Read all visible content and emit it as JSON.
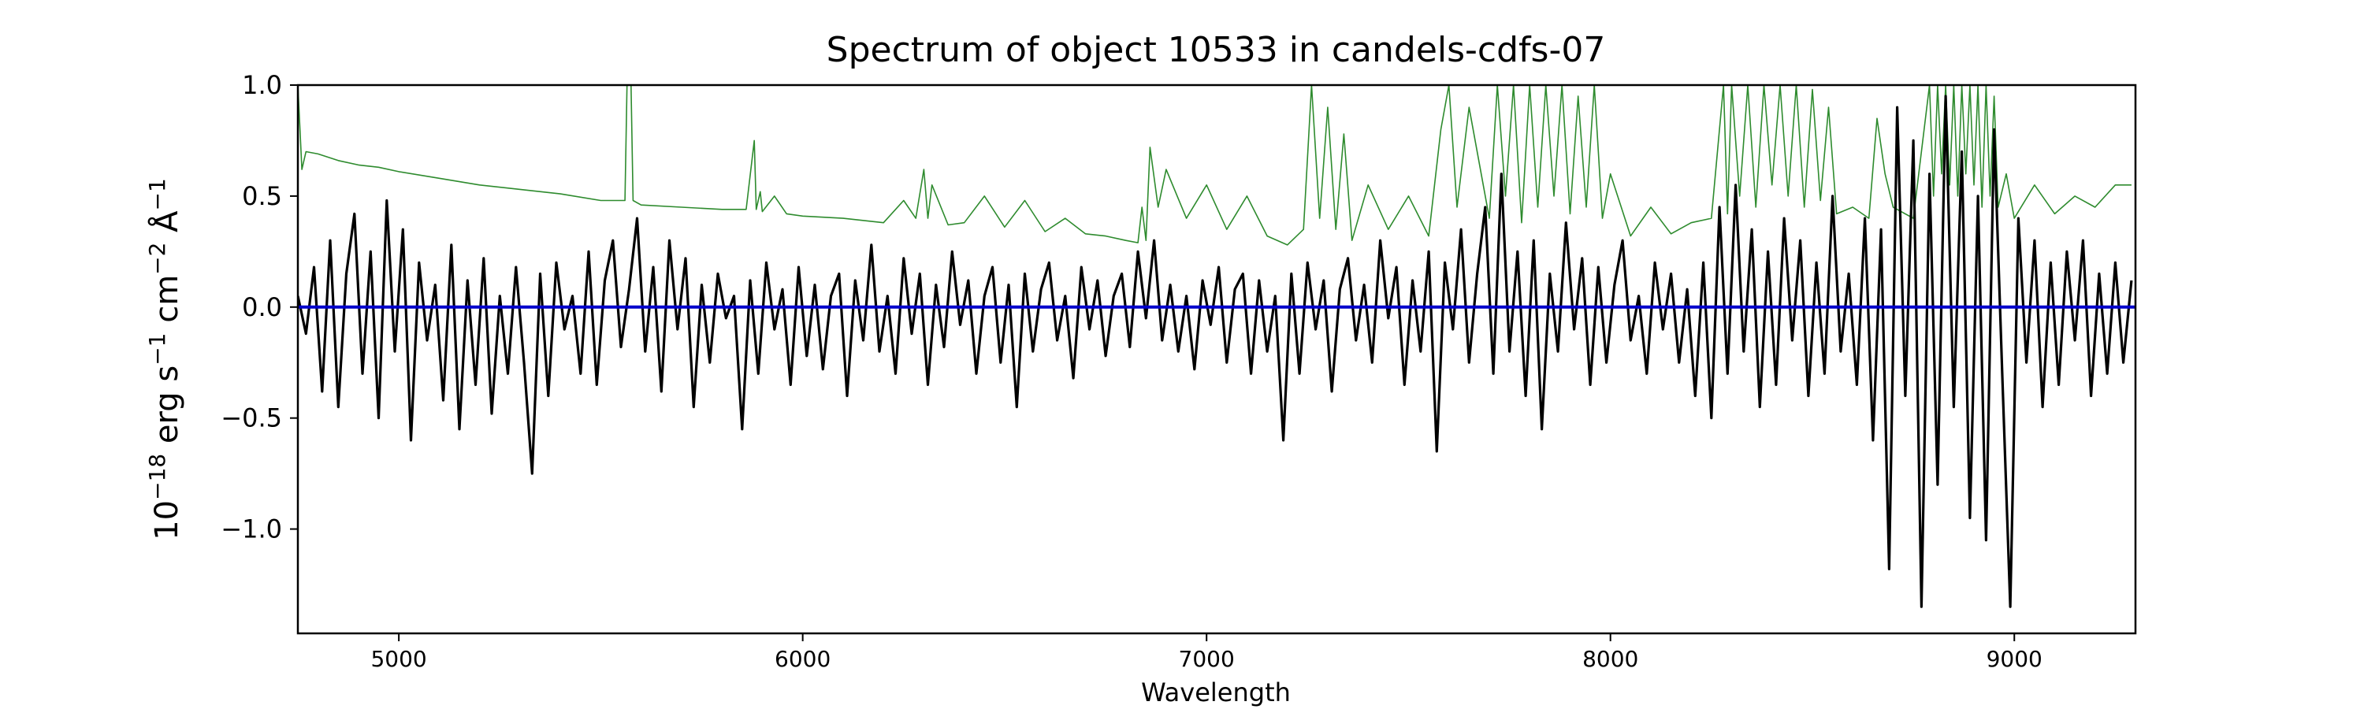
{
  "chart_data": {
    "type": "line",
    "title": "Spectrum of object 10533 in candels-cdfs-07",
    "xlabel": "Wavelength",
    "ylabel": "10^-18 erg s^-1 cm^-2 Å^-1",
    "xlim": [
      4750,
      9300
    ],
    "ylim": [
      -1.47,
      1.0
    ],
    "xticks": [
      5000,
      6000,
      7000,
      8000,
      9000
    ],
    "yticks": [
      -1.0,
      -0.5,
      0.0,
      0.5,
      1.0
    ],
    "ytick_labels": [
      "−1.0",
      "−0.5",
      "0.0",
      "0.5",
      "1.0"
    ],
    "grid": false,
    "colors": {
      "flux": "#000000",
      "sky": "#2e8b2e",
      "zero": "#0000cc"
    },
    "series": [
      {
        "role": "flux",
        "style": "noisy spectrum around zero, larger excursions at red end",
        "x": [
          4750,
          4770,
          4790,
          4810,
          4830,
          4850,
          4870,
          4890,
          4910,
          4930,
          4950,
          4970,
          4990,
          5010,
          5030,
          5050,
          5070,
          5090,
          5110,
          5130,
          5150,
          5170,
          5190,
          5210,
          5230,
          5250,
          5270,
          5290,
          5310,
          5330,
          5350,
          5370,
          5390,
          5410,
          5430,
          5450,
          5470,
          5490,
          5510,
          5530,
          5550,
          5570,
          5590,
          5610,
          5630,
          5650,
          5670,
          5690,
          5710,
          5730,
          5750,
          5770,
          5790,
          5810,
          5830,
          5850,
          5870,
          5890,
          5910,
          5930,
          5950,
          5970,
          5990,
          6010,
          6030,
          6050,
          6070,
          6090,
          6110,
          6130,
          6150,
          6170,
          6190,
          6210,
          6230,
          6250,
          6270,
          6290,
          6310,
          6330,
          6350,
          6370,
          6390,
          6410,
          6430,
          6450,
          6470,
          6490,
          6510,
          6530,
          6550,
          6570,
          6590,
          6610,
          6630,
          6650,
          6670,
          6690,
          6710,
          6730,
          6750,
          6770,
          6790,
          6810,
          6830,
          6850,
          6870,
          6890,
          6910,
          6930,
          6950,
          6970,
          6990,
          7010,
          7030,
          7050,
          7070,
          7090,
          7110,
          7130,
          7150,
          7170,
          7190,
          7210,
          7230,
          7250,
          7270,
          7290,
          7310,
          7330,
          7350,
          7370,
          7390,
          7410,
          7430,
          7450,
          7470,
          7490,
          7510,
          7530,
          7550,
          7570,
          7590,
          7610,
          7630,
          7650,
          7670,
          7690,
          7710,
          7730,
          7750,
          7770,
          7790,
          7810,
          7830,
          7850,
          7870,
          7890,
          7910,
          7930,
          7950,
          7970,
          7990,
          8010,
          8030,
          8050,
          8070,
          8090,
          8110,
          8130,
          8150,
          8170,
          8190,
          8210,
          8230,
          8250,
          8270,
          8290,
          8310,
          8330,
          8350,
          8370,
          8390,
          8410,
          8430,
          8450,
          8470,
          8490,
          8510,
          8530,
          8550,
          8570,
          8590,
          8610,
          8630,
          8650,
          8670,
          8690,
          8710,
          8730,
          8750,
          8770,
          8790,
          8810,
          8830,
          8850,
          8870,
          8890,
          8910,
          8930,
          8950,
          8970,
          8990,
          9010,
          9030,
          9050,
          9070,
          9090,
          9110,
          9130,
          9150,
          9170,
          9190,
          9210,
          9230,
          9250,
          9270,
          9290
        ],
        "y": [
          0.05,
          -0.12,
          0.18,
          -0.38,
          0.3,
          -0.45,
          0.15,
          0.42,
          -0.3,
          0.25,
          -0.5,
          0.48,
          -0.2,
          0.35,
          -0.6,
          0.2,
          -0.15,
          0.1,
          -0.42,
          0.28,
          -0.55,
          0.12,
          -0.35,
          0.22,
          -0.48,
          0.05,
          -0.3,
          0.18,
          -0.25,
          -0.75,
          0.15,
          -0.4,
          0.2,
          -0.1,
          0.05,
          -0.3,
          0.25,
          -0.35,
          0.12,
          0.3,
          -0.18,
          0.08,
          0.4,
          -0.2,
          0.18,
          -0.38,
          0.3,
          -0.1,
          0.22,
          -0.45,
          0.1,
          -0.25,
          0.15,
          -0.05,
          0.05,
          -0.55,
          0.12,
          -0.3,
          0.2,
          -0.1,
          0.08,
          -0.35,
          0.18,
          -0.22,
          0.1,
          -0.28,
          0.05,
          0.15,
          -0.4,
          0.12,
          -0.15,
          0.28,
          -0.2,
          0.05,
          -0.3,
          0.22,
          -0.12,
          0.15,
          -0.35,
          0.1,
          -0.18,
          0.25,
          -0.08,
          0.12,
          -0.3,
          0.05,
          0.18,
          -0.25,
          0.1,
          -0.45,
          0.15,
          -0.2,
          0.08,
          0.2,
          -0.15,
          0.05,
          -0.32,
          0.18,
          -0.1,
          0.12,
          -0.22,
          0.05,
          0.15,
          -0.18,
          0.25,
          -0.05,
          0.3,
          -0.15,
          0.1,
          -0.2,
          0.05,
          -0.28,
          0.12,
          -0.08,
          0.18,
          -0.25,
          0.08,
          0.15,
          -0.3,
          0.12,
          -0.2,
          0.05,
          -0.6,
          0.15,
          -0.3,
          0.2,
          -0.1,
          0.12,
          -0.38,
          0.08,
          0.22,
          -0.15,
          0.1,
          -0.25,
          0.3,
          -0.05,
          0.18,
          -0.35,
          0.12,
          -0.2,
          0.25,
          -0.65,
          0.2,
          -0.1,
          0.35,
          -0.25,
          0.15,
          0.45,
          -0.3,
          0.6,
          -0.2,
          0.25,
          -0.4,
          0.3,
          -0.55,
          0.15,
          -0.2,
          0.38,
          -0.1,
          0.22,
          -0.35,
          0.18,
          -0.25,
          0.1,
          0.3,
          -0.15,
          0.05,
          -0.3,
          0.2,
          -0.1,
          0.15,
          -0.25,
          0.08,
          -0.4,
          0.2,
          -0.5,
          0.45,
          -0.3,
          0.55,
          -0.2,
          0.35,
          -0.45,
          0.25,
          -0.35,
          0.4,
          -0.15,
          0.3,
          -0.4,
          0.2,
          -0.3,
          0.5,
          -0.2,
          0.15,
          -0.35,
          0.4,
          -0.6,
          0.35,
          -1.18,
          0.9,
          -0.4,
          0.75,
          -1.35,
          0.6,
          -0.8,
          0.95,
          -0.45,
          0.7,
          -0.95,
          0.5,
          -1.05,
          0.8,
          -0.3,
          -1.35,
          0.4,
          -0.25,
          0.3,
          -0.45,
          0.2,
          -0.35,
          0.25,
          -0.15,
          0.3,
          -0.4,
          0.15,
          -0.3,
          0.2,
          -0.25,
          0.12
        ]
      },
      {
        "role": "sky",
        "style": "thin green sky/noise spectrum with emission spikes",
        "x": [
          4750,
          4760,
          4770,
          4800,
          4850,
          4900,
          4950,
          5000,
          5100,
          5200,
          5300,
          5400,
          5500,
          5560,
          5565,
          5575,
          5580,
          5600,
          5700,
          5800,
          5860,
          5880,
          5885,
          5895,
          5900,
          5930,
          5960,
          6000,
          6100,
          6200,
          6250,
          6280,
          6300,
          6310,
          6320,
          6360,
          6400,
          6450,
          6500,
          6550,
          6600,
          6650,
          6700,
          6750,
          6800,
          6830,
          6840,
          6850,
          6860,
          6880,
          6900,
          6950,
          7000,
          7050,
          7100,
          7150,
          7200,
          7240,
          7260,
          7280,
          7300,
          7320,
          7340,
          7360,
          7400,
          7450,
          7500,
          7550,
          7580,
          7600,
          7620,
          7650,
          7700,
          7720,
          7740,
          7760,
          7780,
          7800,
          7820,
          7840,
          7860,
          7880,
          7900,
          7920,
          7940,
          7960,
          7980,
          8000,
          8050,
          8100,
          8150,
          8200,
          8250,
          8280,
          8290,
          8300,
          8320,
          8340,
          8360,
          8380,
          8400,
          8420,
          8440,
          8460,
          8480,
          8500,
          8520,
          8540,
          8560,
          8600,
          8640,
          8660,
          8680,
          8700,
          8750,
          8790,
          8800,
          8810,
          8820,
          8830,
          8840,
          8850,
          8860,
          8870,
          8880,
          8890,
          8900,
          8910,
          8920,
          8930,
          8940,
          8950,
          8960,
          8980,
          9000,
          9050,
          9100,
          9150,
          9200,
          9250,
          9290
        ],
        "y": [
          1.0,
          0.62,
          0.7,
          0.69,
          0.66,
          0.64,
          0.63,
          0.61,
          0.58,
          0.55,
          0.53,
          0.51,
          0.48,
          0.48,
          1.0,
          1.0,
          0.48,
          0.46,
          0.45,
          0.44,
          0.44,
          0.75,
          0.44,
          0.52,
          0.43,
          0.5,
          0.42,
          0.41,
          0.4,
          0.38,
          0.48,
          0.4,
          0.62,
          0.4,
          0.55,
          0.37,
          0.38,
          0.5,
          0.36,
          0.48,
          0.34,
          0.4,
          0.33,
          0.32,
          0.3,
          0.29,
          0.45,
          0.3,
          0.72,
          0.45,
          0.62,
          0.4,
          0.55,
          0.35,
          0.5,
          0.32,
          0.28,
          0.35,
          1.0,
          0.4,
          0.9,
          0.35,
          0.78,
          0.3,
          0.55,
          0.35,
          0.5,
          0.32,
          0.8,
          1.0,
          0.45,
          0.9,
          0.4,
          1.0,
          0.5,
          1.0,
          0.38,
          1.0,
          0.45,
          1.0,
          0.5,
          1.0,
          0.42,
          0.95,
          0.45,
          1.0,
          0.4,
          0.6,
          0.32,
          0.45,
          0.33,
          0.38,
          0.4,
          1.0,
          0.42,
          1.0,
          0.5,
          1.0,
          0.45,
          1.0,
          0.55,
          1.0,
          0.5,
          1.0,
          0.45,
          0.98,
          0.48,
          0.9,
          0.42,
          0.45,
          0.4,
          0.85,
          0.6,
          0.45,
          0.4,
          1.0,
          0.5,
          1.0,
          0.6,
          1.0,
          0.55,
          1.0,
          0.5,
          1.0,
          0.6,
          1.0,
          0.55,
          1.0,
          0.45,
          1.0,
          0.5,
          0.95,
          0.45,
          0.6,
          0.4,
          0.55,
          0.42,
          0.5,
          0.45,
          0.55,
          0.55
        ]
      },
      {
        "role": "zero",
        "style": "flat zero reference line",
        "x": [
          4750,
          9300
        ],
        "y": [
          0,
          0
        ]
      }
    ]
  }
}
